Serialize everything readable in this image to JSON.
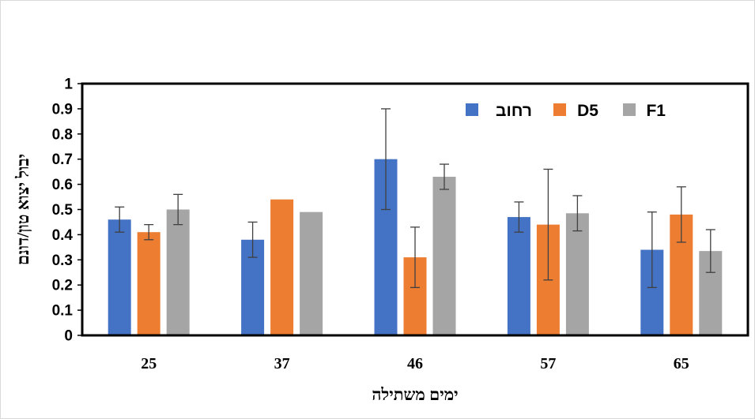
{
  "chart_data": {
    "type": "bar",
    "xlabel": "ימים משתילה",
    "ylabel": "יבול יצוא טון/דונם",
    "ylim": [
      0,
      1
    ],
    "yticks": [
      "0",
      "0.1",
      "0.2",
      "0.3",
      "0.4",
      "0.5",
      "0.6",
      "0.7",
      "0.8",
      "0.9",
      "1"
    ],
    "categories": [
      "25",
      "37",
      "46",
      "57",
      "65"
    ],
    "series": [
      {
        "name": "רחוב",
        "color": "#4472C4",
        "values": [
          0.46,
          0.38,
          0.7,
          0.47,
          0.34
        ],
        "err_low": [
          0.41,
          0.31,
          0.5,
          0.41,
          0.19
        ],
        "err_high": [
          0.51,
          0.45,
          0.9,
          0.53,
          0.49
        ]
      },
      {
        "name": "D5",
        "color": "#ED7D31",
        "values": [
          0.41,
          0.54,
          0.31,
          0.44,
          0.48
        ],
        "err_low": [
          0.38,
          null,
          0.19,
          0.22,
          0.37
        ],
        "err_high": [
          0.44,
          null,
          0.43,
          0.66,
          0.59
        ]
      },
      {
        "name": "F1",
        "color": "#A5A5A5",
        "values": [
          0.5,
          0.49,
          0.63,
          0.485,
          0.335
        ],
        "err_low": [
          0.44,
          null,
          0.58,
          0.415,
          0.25
        ],
        "err_high": [
          0.56,
          null,
          0.68,
          0.555,
          0.42
        ]
      }
    ],
    "legend": "top-right",
    "grid": false
  }
}
